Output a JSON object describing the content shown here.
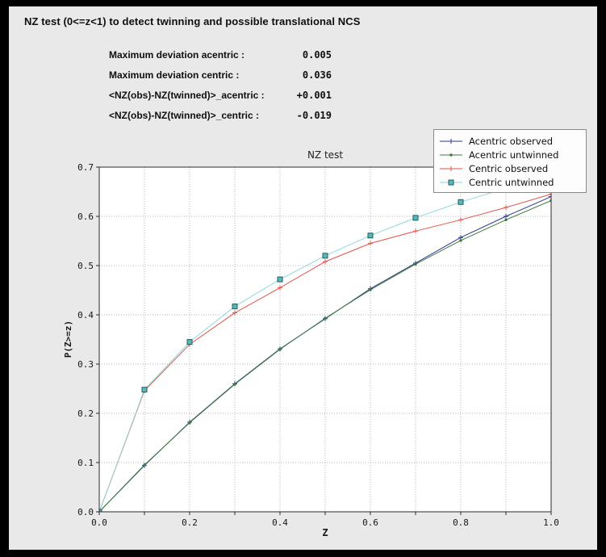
{
  "header": {
    "title": "NZ test (0<=z<1) to detect twinning and possible translational NCS"
  },
  "stats": [
    {
      "label": "Maximum deviation acentric :",
      "value": "0.005"
    },
    {
      "label": "Maximum deviation centric :",
      "value": "0.036"
    },
    {
      "label": "<NZ(obs)-NZ(twinned)>_acentric :",
      "value": "+0.001"
    },
    {
      "label": "<NZ(obs)-NZ(twinned)>_centric :",
      "value": "-0.019"
    }
  ],
  "colors": {
    "frame": "#000000",
    "panel_bg": "#e9e9e9",
    "plot_bg": "#ffffff",
    "grid": "#b4b4b4",
    "axis": "#2a2a2a"
  },
  "chart_data": {
    "type": "line",
    "title": "NZ test",
    "xlabel": "Z",
    "ylabel": "P(Z>=z)",
    "xlim": [
      0.0,
      1.0
    ],
    "ylim": [
      0.0,
      0.7
    ],
    "grid": "dotted",
    "grid_step": 0.1,
    "legend_position": "upper right",
    "x_tick_values": [
      0.0,
      0.2,
      0.4,
      0.6,
      0.8,
      1.0
    ],
    "x_tick_labels": [
      "0.0",
      "0.2",
      "0.4",
      "0.6",
      "0.8",
      "1.0"
    ],
    "y_tick_values": [
      0.0,
      0.1,
      0.2,
      0.3,
      0.4,
      0.5,
      0.6,
      0.7
    ],
    "y_tick_labels": [
      "0.0",
      "0.1",
      "0.2",
      "0.3",
      "0.4",
      "0.5",
      "0.6",
      "0.7"
    ],
    "x": [
      0.0,
      0.1,
      0.2,
      0.3,
      0.4,
      0.5,
      0.6,
      0.7,
      0.8,
      0.9,
      1.0
    ],
    "series": [
      {
        "name": "Acentric observed",
        "color": "#2b3990",
        "marker": "plus",
        "values": [
          0.0,
          0.094,
          0.182,
          0.26,
          0.331,
          0.392,
          0.453,
          0.505,
          0.557,
          0.6,
          0.64
        ]
      },
      {
        "name": "Acentric untwinned",
        "color": "#3d7a3d",
        "marker": "dot",
        "values": [
          0.0,
          0.095,
          0.181,
          0.259,
          0.33,
          0.393,
          0.451,
          0.503,
          0.551,
          0.593,
          0.632
        ]
      },
      {
        "name": "Centric observed",
        "color": "#e1554a",
        "marker": "plus",
        "values": [
          0.0,
          0.246,
          0.34,
          0.404,
          0.455,
          0.508,
          0.545,
          0.57,
          0.593,
          0.618,
          0.645
        ]
      },
      {
        "name": "Centric untwinned",
        "color": "#8fd8d8",
        "marker": "square",
        "marker_fill": "#56b8b8",
        "marker_edge": "#23605f",
        "values": [
          0.0,
          0.248,
          0.345,
          0.417,
          0.472,
          0.52,
          0.561,
          0.597,
          0.629,
          0.657,
          0.683
        ]
      }
    ]
  }
}
